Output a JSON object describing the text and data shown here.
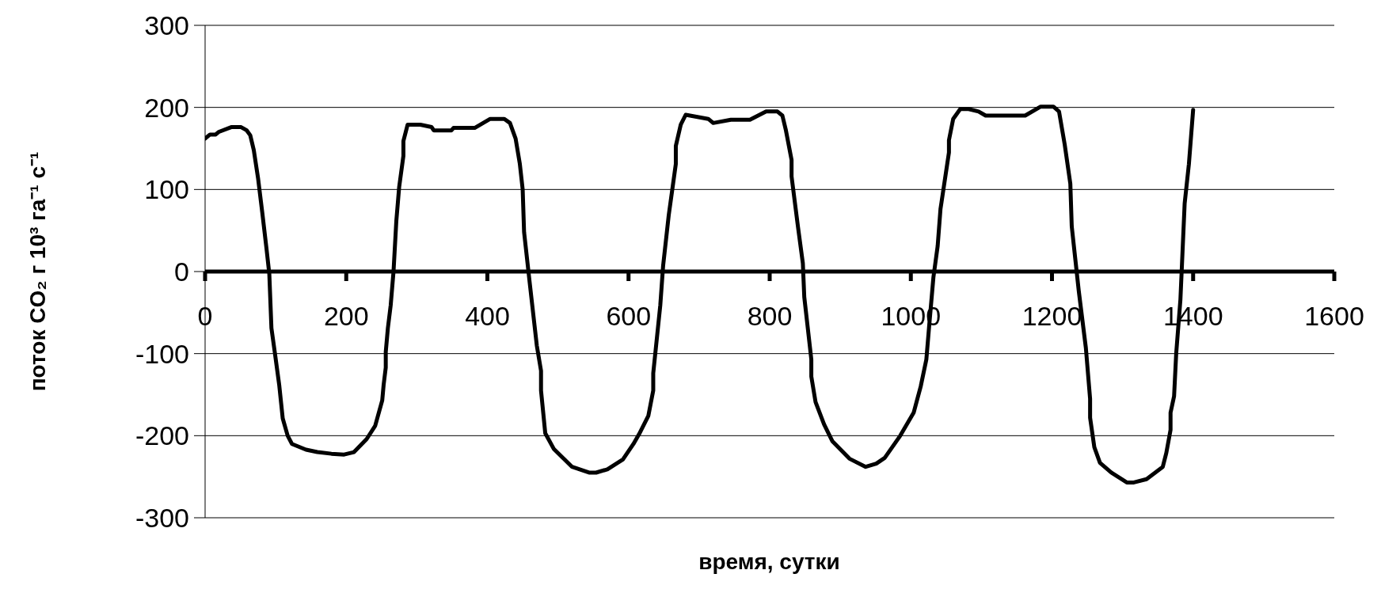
{
  "chart_data": {
    "type": "line",
    "xlabel": "время, сутки",
    "ylabel": "поток CO₂ г 10³ га⁻¹ с⁻¹",
    "xlim": [
      0,
      1600
    ],
    "xticks": [
      0,
      200,
      400,
      600,
      800,
      1000,
      1200,
      1400,
      1600
    ],
    "ylim": [
      -300,
      300
    ],
    "yticks": [
      -300,
      -200,
      -100,
      0,
      100,
      200,
      300
    ],
    "grid": "y",
    "marker": "none",
    "line_style": "solid",
    "series": [
      {
        "color": "#000000",
        "x": [
          0,
          7,
          15,
          19,
          37,
          51,
          59,
          64,
          69,
          75,
          81,
          87,
          91,
          94,
          99,
          105,
          110,
          117,
          123,
          143,
          159,
          179,
          197,
          211,
          229,
          241,
          251,
          253,
          256,
          256,
          259,
          263,
          267,
          271,
          275,
          281,
          281,
          287,
          305,
          321,
          324,
          349,
          352,
          382,
          404,
          424,
          432,
          440,
          446,
          450,
          452,
          460,
          470,
          476,
          476,
          482,
          494,
          520,
          544,
          554,
          570,
          592,
          607,
          615,
          628,
          635,
          635,
          645,
          649,
          657,
          667,
          667,
          674,
          681,
          713,
          720,
          745,
          772,
          795,
          811,
          818,
          823,
          831,
          831,
          840,
          847,
          849,
          859,
          859,
          865,
          877,
          889,
          913,
          936,
          951,
          963,
          985,
          1004,
          1014,
          1022,
          1026,
          1032,
          1038,
          1042,
          1054,
          1054,
          1060,
          1070,
          1082,
          1096,
          1106,
          1162,
          1184,
          1202,
          1210,
          1218,
          1226,
          1228,
          1238,
          1248,
          1254,
          1254,
          1260,
          1268,
          1284,
          1306,
          1316,
          1334,
          1357,
          1362,
          1368,
          1368,
          1373,
          1376,
          1382,
          1388,
          1394,
          1400
        ],
        "values": [
          162,
          167,
          167,
          170,
          176,
          176,
          172,
          166,
          148,
          114,
          72,
          28,
          -3,
          -69,
          -100,
          -138,
          -179,
          -200,
          -210,
          -217,
          -220,
          -222,
          -223,
          -220,
          -204,
          -188,
          -157,
          -138,
          -117,
          -98,
          -69,
          -41,
          0,
          62,
          103,
          141,
          159,
          179,
          179,
          176,
          172,
          172,
          175,
          175,
          186,
          186,
          181,
          162,
          131,
          100,
          48,
          -14,
          -90,
          -121,
          -145,
          -197,
          -216,
          -238,
          -245,
          -245,
          -241,
          -229,
          -210,
          -198,
          -176,
          -145,
          -124,
          -41,
          7,
          69,
          131,
          153,
          179,
          191,
          186,
          181,
          185,
          185,
          195,
          195,
          190,
          172,
          136,
          116,
          55,
          10,
          -31,
          -107,
          -128,
          -159,
          -186,
          -207,
          -228,
          -238,
          -234,
          -227,
          -200,
          -172,
          -140,
          -107,
          -66,
          -7,
          31,
          76,
          145,
          160,
          186,
          198,
          198,
          195,
          190,
          190,
          201,
          201,
          195,
          155,
          107,
          55,
          -24,
          -93,
          -155,
          -178,
          -214,
          -233,
          -245,
          -257,
          -257,
          -253,
          -238,
          -221,
          -193,
          -172,
          -152,
          -100,
          -34,
          83,
          131,
          197
        ]
      }
    ]
  }
}
